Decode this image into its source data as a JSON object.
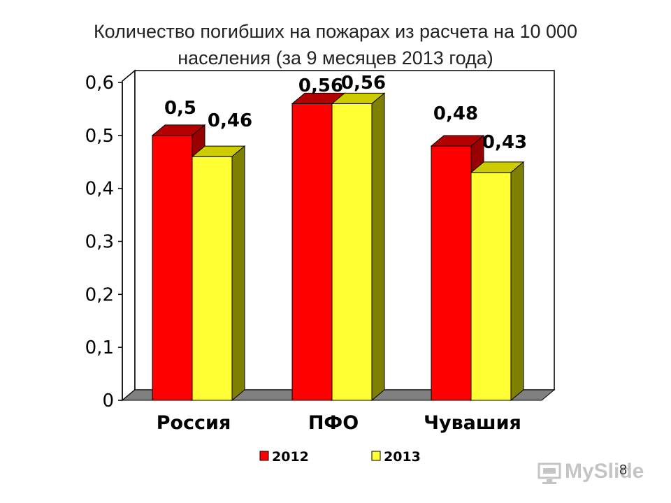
{
  "title_line1": "Количество погибших на пожарах из расчета на 10 000",
  "title_line2": "населения (за 9 месяцев 2013 года)",
  "page_number": "8",
  "watermark": "MySlide",
  "colors": {
    "2012_front": "#ff0000",
    "2012_top": "#b30000",
    "2012_side": "#990000",
    "2013_front": "#ffff33",
    "2013_top": "#cccc00",
    "2013_side": "#808000",
    "floor": "#808080",
    "plot_bg": "#ffffff"
  },
  "chart_data": {
    "type": "bar",
    "categories": [
      "Россия",
      "ПФО",
      "Чувашия"
    ],
    "series": [
      {
        "name": "2012",
        "values": [
          0.5,
          0.56,
          0.48
        ],
        "labels": [
          "0,5",
          "0,56",
          "0,48"
        ]
      },
      {
        "name": "2013",
        "values": [
          0.46,
          0.56,
          0.43
        ],
        "labels": [
          "0,46",
          "0,56",
          "0,43"
        ]
      }
    ],
    "yticks": [
      "0",
      "0,1",
      "0,2",
      "0,3",
      "0,4",
      "0,5",
      "0,6"
    ],
    "ylim": [
      0,
      0.6
    ],
    "legend": "bottom-center",
    "grid": false
  }
}
